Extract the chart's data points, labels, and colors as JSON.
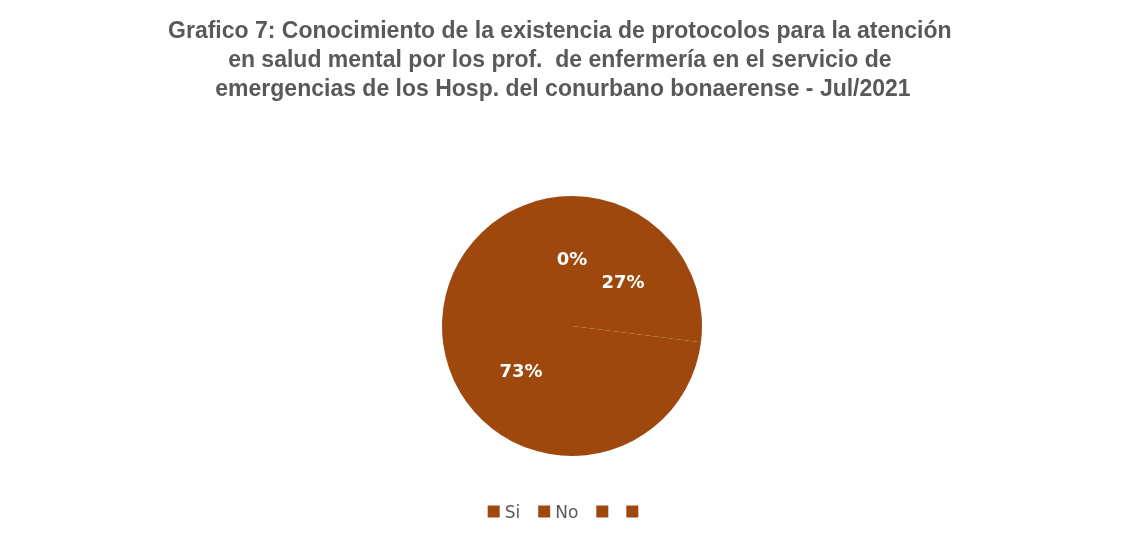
{
  "chart_data": {
    "type": "pie",
    "title": "Grafico 7: Conocimiento de la existencia de protocolos para la atención en salud mental por los prof.  de enfermería en el servicio de emergencias de los Hosp. del conurbano bonaerense - Jul/2021",
    "categories": [
      "Si",
      "No",
      null,
      null
    ],
    "values": [
      0,
      27,
      73,
      0
    ],
    "value_labels": [
      "0%",
      "27%",
      "73%",
      null
    ],
    "colors": [
      "#9e480e",
      "#9e480e",
      "#9e480e",
      "#9e480e"
    ],
    "legend": "bottom"
  }
}
